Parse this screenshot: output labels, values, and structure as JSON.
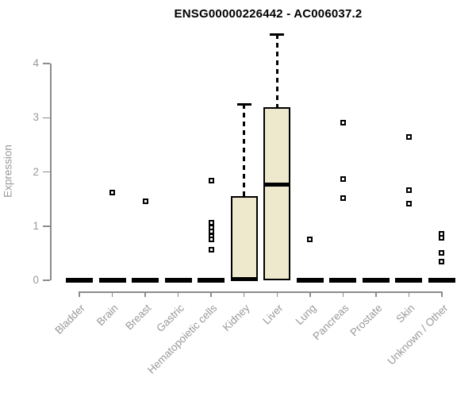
{
  "page": {
    "background": "#ffffff"
  },
  "chart_data": {
    "type": "box",
    "title": "ENSG00000226442 - AC006037.2",
    "ylabel": "Expression",
    "xlabel": "",
    "yticks": [
      0,
      1,
      2,
      3,
      4
    ],
    "ylim": [
      0,
      4.65
    ],
    "grid": false,
    "legend": "none",
    "categories": [
      "Bladder",
      "Brain",
      "Breast",
      "Gastric",
      "Hematopoietic cells",
      "Kidney",
      "Liver",
      "Lung",
      "Pancreas",
      "Prostate",
      "Skin",
      "Unknown / Other"
    ],
    "boxes": [
      {
        "category": "Bladder",
        "q1": 0,
        "median": 0,
        "q3": 0,
        "whisker_low": 0,
        "whisker_high": 0,
        "outliers": []
      },
      {
        "category": "Brain",
        "q1": 0,
        "median": 0,
        "q3": 0,
        "whisker_low": 0,
        "whisker_high": 0,
        "outliers": [
          1.62
        ]
      },
      {
        "category": "Breast",
        "q1": 0,
        "median": 0,
        "q3": 0,
        "whisker_low": 0,
        "whisker_high": 0,
        "outliers": [
          1.46
        ]
      },
      {
        "category": "Gastric",
        "q1": 0,
        "median": 0,
        "q3": 0,
        "whisker_low": 0,
        "whisker_high": 0,
        "outliers": []
      },
      {
        "category": "Hematopoietic cells",
        "q1": 0,
        "median": 0,
        "q3": 0,
        "whisker_low": 0,
        "whisker_high": 0,
        "outliers": [
          1.84,
          1.06,
          0.98,
          0.9,
          0.82,
          0.75,
          0.56
        ]
      },
      {
        "category": "Kidney",
        "q1": 0,
        "median": 0.02,
        "q3": 1.55,
        "whisker_low": 0,
        "whisker_high": 3.25,
        "outliers": []
      },
      {
        "category": "Liver",
        "q1": 0,
        "median": 1.77,
        "q3": 3.19,
        "whisker_low": 0,
        "whisker_high": 4.54,
        "outliers": []
      },
      {
        "category": "Lung",
        "q1": 0,
        "median": 0,
        "q3": 0,
        "whisker_low": 0,
        "whisker_high": 0,
        "outliers": [
          0.75
        ]
      },
      {
        "category": "Pancreas",
        "q1": 0,
        "median": 0,
        "q3": 0,
        "whisker_low": 0,
        "whisker_high": 0,
        "outliers": [
          2.91,
          1.87,
          1.52
        ]
      },
      {
        "category": "Prostate",
        "q1": 0,
        "median": 0,
        "q3": 0,
        "whisker_low": 0,
        "whisker_high": 0,
        "outliers": []
      },
      {
        "category": "Skin",
        "q1": 0,
        "median": 0,
        "q3": 0,
        "whisker_low": 0,
        "whisker_high": 0,
        "outliers": [
          2.65,
          1.67,
          1.41
        ]
      },
      {
        "category": "Unknown / Other",
        "q1": 0,
        "median": 0,
        "q3": 0,
        "whisker_low": 0,
        "whisker_high": 0,
        "outliers": [
          0.85,
          0.78,
          0.5,
          0.34
        ]
      }
    ],
    "colors": {
      "box_fill": "#EEE8CD",
      "box_border": "#000000",
      "median": "#000000",
      "whisker": "#000000",
      "outlier": "#000000",
      "axis": "#8C8C8C",
      "tick_label": "#999999",
      "title": "#000000"
    }
  }
}
